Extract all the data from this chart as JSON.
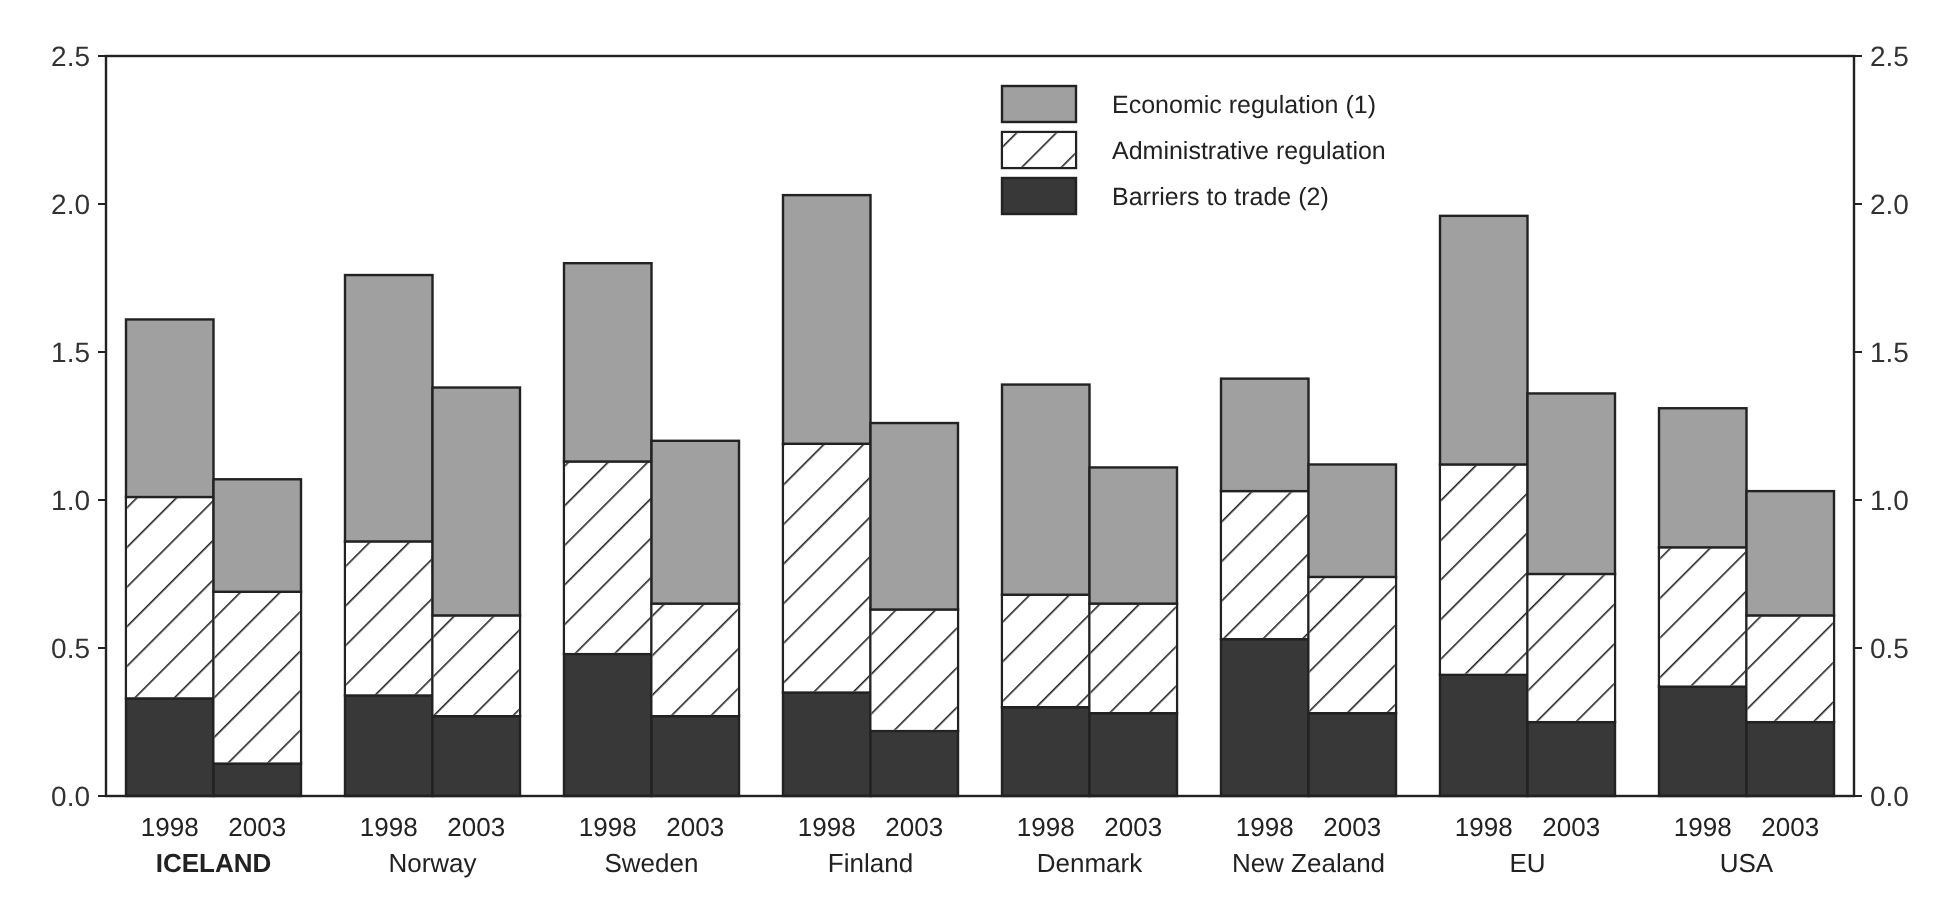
{
  "chart_data": {
    "type": "bar",
    "stacked": true,
    "categories": [
      "1998",
      "2003",
      "1998",
      "2003",
      "1998",
      "2003",
      "1998",
      "2003",
      "1998",
      "2003",
      "1998",
      "2003",
      "1998",
      "2003",
      "1998",
      "2003"
    ],
    "series": [
      {
        "name": "Barriers to trade (2)",
        "color": "#383838",
        "values": [
          0.33,
          0.11,
          0.34,
          0.27,
          0.48,
          0.27,
          0.35,
          0.22,
          0.3,
          0.28,
          0.53,
          0.28,
          0.41,
          0.25,
          0.37,
          0.25
        ]
      },
      {
        "name": "Administrative regulation",
        "color": "#ffffff",
        "values": [
          0.68,
          0.58,
          0.52,
          0.34,
          0.65,
          0.38,
          0.84,
          0.41,
          0.38,
          0.37,
          0.5,
          0.46,
          0.71,
          0.5,
          0.47,
          0.36
        ]
      },
      {
        "name": "Economic regulation (1)",
        "color": "#a0a0a0",
        "values": [
          0.6,
          0.38,
          0.9,
          0.77,
          0.67,
          0.55,
          0.84,
          0.63,
          0.71,
          0.46,
          0.38,
          0.38,
          0.84,
          0.61,
          0.47,
          0.42
        ]
      }
    ],
    "annotations": [
      "ICELAND",
      "Norway",
      "Sweden",
      "Finland",
      "Denmark",
      "New Zealand",
      "EU",
      "USA"
    ],
    "ylim": [
      0,
      2.5
    ],
    "yticks": [
      {
        "value": 0,
        "label": "0.0"
      },
      {
        "value": 0.5,
        "label": "0.5"
      },
      {
        "value": 1,
        "label": "1.0"
      },
      {
        "value": 1.5,
        "label": "1.5"
      },
      {
        "value": 2,
        "label": "2.0"
      },
      {
        "value": 2.5,
        "label": "2.5"
      }
    ],
    "y2lim": [
      0,
      2.5
    ],
    "y2ticks": [
      {
        "value": 0,
        "label": "0.0"
      },
      {
        "value": 0.5,
        "label": "0.5"
      },
      {
        "value": 1,
        "label": "1.0"
      },
      {
        "value": 1.5,
        "label": "1.5"
      },
      {
        "value": 2,
        "label": "2.0"
      },
      {
        "value": 2.5,
        "label": "2.5"
      }
    ],
    "legend": "top",
    "grid": false
  }
}
